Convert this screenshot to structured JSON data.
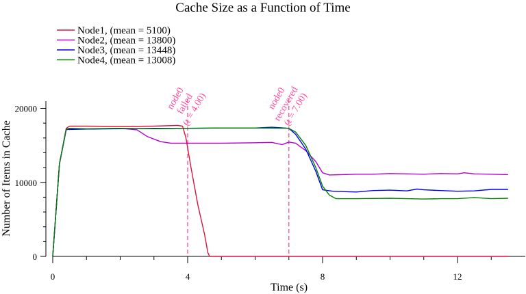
{
  "chart_data": {
    "type": "line",
    "title": "Cache Size as a Function of Time",
    "xlabel": "Time (s)",
    "ylabel": "Number of Items in Cache",
    "xlim": [
      0,
      13.6
    ],
    "ylim": [
      0,
      20000
    ],
    "xticks": [
      0,
      4,
      8,
      12
    ],
    "xtick_labels": [
      "0",
      "4",
      "8",
      "12"
    ],
    "yticks": [
      0,
      10000,
      20000
    ],
    "ytick_labels": [
      "0",
      "10000",
      "20000"
    ],
    "grid": false,
    "legend_position": "top-left",
    "series": [
      {
        "name": "Node1, (mean = 5100)",
        "color": "#dc143c",
        "points": [
          [
            0,
            0
          ],
          [
            0.2,
            12500
          ],
          [
            0.4,
            17300
          ],
          [
            0.5,
            17600
          ],
          [
            1,
            17600
          ],
          [
            2,
            17550
          ],
          [
            3,
            17600
          ],
          [
            3.7,
            17700
          ],
          [
            3.85,
            17600
          ],
          [
            3.95,
            16000
          ],
          [
            4.1,
            12000
          ],
          [
            4.3,
            7000
          ],
          [
            4.5,
            3000
          ],
          [
            4.6,
            500
          ],
          [
            4.65,
            0
          ],
          [
            6,
            0
          ],
          [
            8,
            0
          ],
          [
            10,
            0
          ],
          [
            12,
            0
          ],
          [
            13.5,
            0
          ]
        ]
      },
      {
        "name": "Node2, (mean = 13800)",
        "color": "#b000d0",
        "points": [
          [
            0,
            0
          ],
          [
            0.2,
            12500
          ],
          [
            0.4,
            17100
          ],
          [
            0.5,
            17200
          ],
          [
            1,
            17200
          ],
          [
            2,
            17300
          ],
          [
            2.5,
            17100
          ],
          [
            2.8,
            16200
          ],
          [
            3.2,
            15500
          ],
          [
            3.5,
            15300
          ],
          [
            4,
            15300
          ],
          [
            5,
            15300
          ],
          [
            6,
            15350
          ],
          [
            6.5,
            15400
          ],
          [
            6.6,
            15300
          ],
          [
            6.8,
            15100
          ],
          [
            7,
            15450
          ],
          [
            7.2,
            15300
          ],
          [
            7.5,
            14300
          ],
          [
            7.8,
            12800
          ],
          [
            8,
            11300
          ],
          [
            8.2,
            11000
          ],
          [
            9,
            11100
          ],
          [
            9.5,
            11100
          ],
          [
            10,
            11200
          ],
          [
            11,
            11100
          ],
          [
            11.5,
            11200
          ],
          [
            12,
            11150
          ],
          [
            12.2,
            11300
          ],
          [
            12.5,
            11150
          ],
          [
            13,
            11100
          ],
          [
            13.5,
            11050
          ]
        ]
      },
      {
        "name": "Node3, (mean = 13448)",
        "color": "#0000ee",
        "points": [
          [
            0,
            0
          ],
          [
            0.2,
            12500
          ],
          [
            0.4,
            17200
          ],
          [
            0.5,
            17150
          ],
          [
            1,
            17200
          ],
          [
            2,
            17250
          ],
          [
            3,
            17300
          ],
          [
            4,
            17300
          ],
          [
            5,
            17350
          ],
          [
            6,
            17350
          ],
          [
            6.5,
            17450
          ],
          [
            7,
            17300
          ],
          [
            7.2,
            16500
          ],
          [
            7.5,
            14500
          ],
          [
            7.8,
            11500
          ],
          [
            8,
            9000
          ],
          [
            8.3,
            8800
          ],
          [
            9,
            8700
          ],
          [
            9.5,
            8900
          ],
          [
            10,
            8950
          ],
          [
            10.5,
            8850
          ],
          [
            10.8,
            9100
          ],
          [
            11,
            9000
          ],
          [
            11.5,
            8900
          ],
          [
            12,
            8800
          ],
          [
            12.5,
            8850
          ],
          [
            13,
            9050
          ],
          [
            13.5,
            9050
          ]
        ]
      },
      {
        "name": "Node4, (mean = 13008)",
        "color": "#008000",
        "points": [
          [
            0,
            0
          ],
          [
            0.2,
            12500
          ],
          [
            0.4,
            17200
          ],
          [
            0.5,
            17300
          ],
          [
            1,
            17250
          ],
          [
            2,
            17300
          ],
          [
            3,
            17250
          ],
          [
            4,
            17300
          ],
          [
            5,
            17350
          ],
          [
            6,
            17350
          ],
          [
            7,
            17300
          ],
          [
            7.2,
            16800
          ],
          [
            7.5,
            15000
          ],
          [
            7.8,
            12000
          ],
          [
            8,
            9500
          ],
          [
            8.2,
            8300
          ],
          [
            8.4,
            7800
          ],
          [
            9,
            7800
          ],
          [
            10,
            7850
          ],
          [
            10.5,
            7800
          ],
          [
            11,
            7750
          ],
          [
            11.5,
            7800
          ],
          [
            12,
            7800
          ],
          [
            12.5,
            7950
          ],
          [
            13,
            7800
          ],
          [
            13.5,
            7850
          ]
        ]
      }
    ],
    "annotations": [
      {
        "x": 4.0,
        "lines": [
          "node0",
          "failed",
          "(t = 4.00)"
        ],
        "color": "#ff4a9a"
      },
      {
        "x": 7.0,
        "lines": [
          "node0",
          "recovered",
          "(t = 7.00)"
        ],
        "color": "#ff4a9a"
      }
    ]
  }
}
